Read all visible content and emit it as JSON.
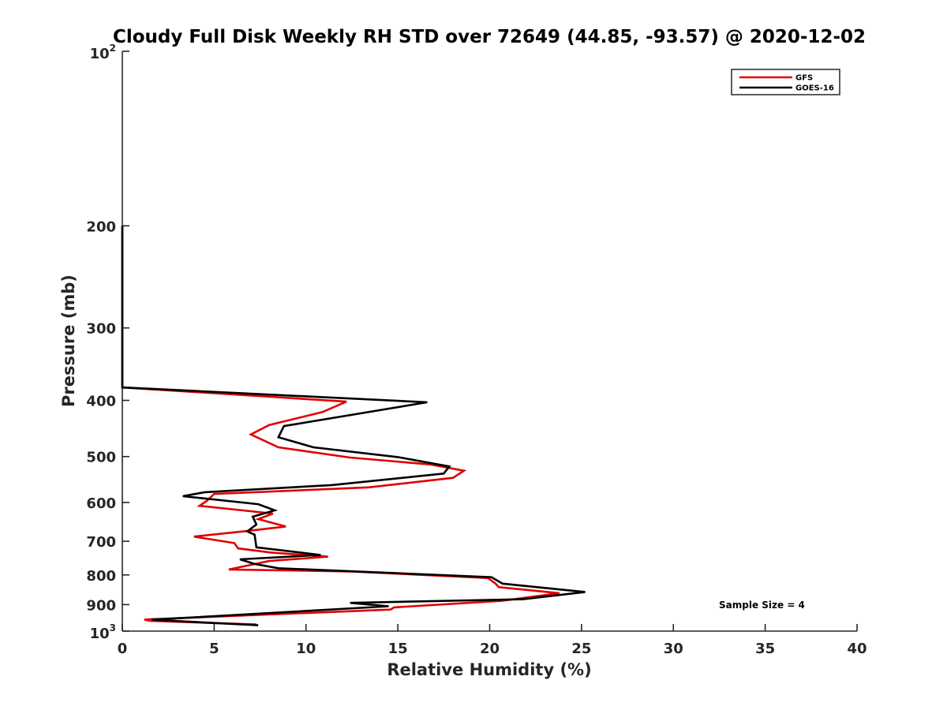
{
  "chart_data": {
    "type": "line",
    "title": "Cloudy Full Disk Weekly RH STD over 72649 (44.85, -93.57) @ 2020-12-02",
    "xlabel": "Relative Humidity (%)",
    "ylabel": "Pressure (mb)",
    "xlim": [
      0,
      40
    ],
    "ylim": [
      100,
      1000
    ],
    "y_scale": "log",
    "y_reversed": true,
    "x_ticks": [
      "0",
      "5",
      "10",
      "15",
      "20",
      "25",
      "30",
      "35",
      "40"
    ],
    "y_ticks": [
      {
        "value": 100,
        "base": "10",
        "exp": "2"
      },
      {
        "value": 200,
        "label": "200"
      },
      {
        "value": 300,
        "label": "300"
      },
      {
        "value": 400,
        "label": "400"
      },
      {
        "value": 500,
        "label": "500"
      },
      {
        "value": 600,
        "label": "600"
      },
      {
        "value": 700,
        "label": "700"
      },
      {
        "value": 800,
        "label": "800"
      },
      {
        "value": 900,
        "label": "900"
      },
      {
        "value": 1000,
        "base": "10",
        "exp": "3"
      }
    ],
    "grid": false,
    "legend_position": "top-right",
    "annotation": "Sample Size = 4",
    "series": [
      {
        "name": "GFS",
        "color": "#e00000",
        "points": [
          [
            0,
            200
          ],
          [
            0,
            380
          ],
          [
            12.2,
            402
          ],
          [
            10.9,
            419
          ],
          [
            8.0,
            441
          ],
          [
            7.0,
            458
          ],
          [
            8.5,
            482
          ],
          [
            12.4,
            502
          ],
          [
            16.8,
            516
          ],
          [
            18.6,
            529
          ],
          [
            18.0,
            544
          ],
          [
            13.4,
            565
          ],
          [
            5.0,
            580
          ],
          [
            4.6,
            596
          ],
          [
            4.2,
            608
          ],
          [
            8.2,
            627
          ],
          [
            7.4,
            641
          ],
          [
            8.9,
            660
          ],
          [
            6.8,
            672
          ],
          [
            3.9,
            687
          ],
          [
            6.1,
            705
          ],
          [
            6.3,
            720
          ],
          [
            8.1,
            732
          ],
          [
            11.2,
            744
          ],
          [
            8.0,
            757
          ],
          [
            5.8,
            783
          ],
          [
            12.5,
            789
          ],
          [
            19.9,
            810
          ],
          [
            20.3,
            827
          ],
          [
            20.5,
            840
          ],
          [
            23.8,
            860
          ],
          [
            20.6,
            887
          ],
          [
            14.8,
            910
          ],
          [
            14.6,
            918
          ],
          [
            1.2,
            955
          ],
          [
            1.5,
            960
          ],
          [
            7.3,
            974
          ]
        ]
      },
      {
        "name": "GOES-16",
        "color": "#000000",
        "points": [
          [
            0,
            200
          ],
          [
            0,
            380
          ],
          [
            16.6,
            403
          ],
          [
            8.8,
            443
          ],
          [
            8.5,
            463
          ],
          [
            10.4,
            482
          ],
          [
            15.0,
            501
          ],
          [
            17.8,
            520
          ],
          [
            17.5,
            535
          ],
          [
            11.4,
            560
          ],
          [
            4.5,
            576
          ],
          [
            3.3,
            585
          ],
          [
            7.4,
            604
          ],
          [
            8.3,
            619
          ],
          [
            7.1,
            635
          ],
          [
            7.3,
            655
          ],
          [
            6.8,
            673
          ],
          [
            7.2,
            682
          ],
          [
            7.3,
            717
          ],
          [
            10.8,
            739
          ],
          [
            6.4,
            752
          ],
          [
            7.2,
            766
          ],
          [
            8.5,
            779
          ],
          [
            20.1,
            807
          ],
          [
            20.7,
            828
          ],
          [
            25.2,
            856
          ],
          [
            21.8,
            881
          ],
          [
            12.4,
            894
          ],
          [
            14.5,
            906
          ],
          [
            1.6,
            956
          ],
          [
            7.4,
            977
          ]
        ]
      }
    ]
  }
}
